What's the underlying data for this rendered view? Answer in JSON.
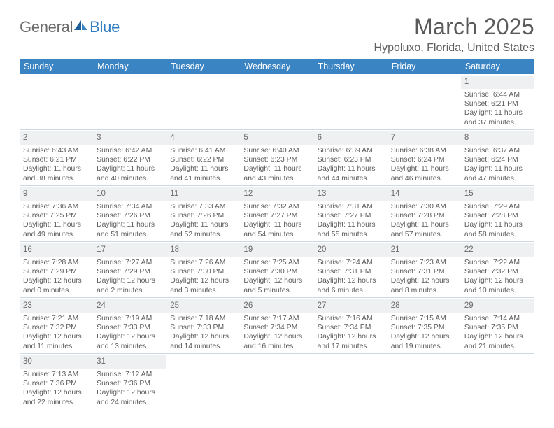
{
  "brand": {
    "word1": "General",
    "word2": "Blue"
  },
  "title": "March 2025",
  "location": "Hypoluxo, Florida, United States",
  "colors": {
    "header_bg": "#3b84c4",
    "header_fg": "#ffffff",
    "border": "#cdd8e2",
    "daybar_bg": "#eef0f2",
    "text": "#5a5a5a",
    "brand_blue": "#2e7cc2"
  },
  "weekdays": [
    "Sunday",
    "Monday",
    "Tuesday",
    "Wednesday",
    "Thursday",
    "Friday",
    "Saturday"
  ],
  "weeks": [
    [
      {
        "blank": true
      },
      {
        "blank": true
      },
      {
        "blank": true
      },
      {
        "blank": true
      },
      {
        "blank": true
      },
      {
        "blank": true
      },
      {
        "num": "1",
        "sunrise": "Sunrise: 6:44 AM",
        "sunset": "Sunset: 6:21 PM",
        "daylight": "Daylight: 11 hours and 37 minutes."
      }
    ],
    [
      {
        "num": "2",
        "sunrise": "Sunrise: 6:43 AM",
        "sunset": "Sunset: 6:21 PM",
        "daylight": "Daylight: 11 hours and 38 minutes."
      },
      {
        "num": "3",
        "sunrise": "Sunrise: 6:42 AM",
        "sunset": "Sunset: 6:22 PM",
        "daylight": "Daylight: 11 hours and 40 minutes."
      },
      {
        "num": "4",
        "sunrise": "Sunrise: 6:41 AM",
        "sunset": "Sunset: 6:22 PM",
        "daylight": "Daylight: 11 hours and 41 minutes."
      },
      {
        "num": "5",
        "sunrise": "Sunrise: 6:40 AM",
        "sunset": "Sunset: 6:23 PM",
        "daylight": "Daylight: 11 hours and 43 minutes."
      },
      {
        "num": "6",
        "sunrise": "Sunrise: 6:39 AM",
        "sunset": "Sunset: 6:23 PM",
        "daylight": "Daylight: 11 hours and 44 minutes."
      },
      {
        "num": "7",
        "sunrise": "Sunrise: 6:38 AM",
        "sunset": "Sunset: 6:24 PM",
        "daylight": "Daylight: 11 hours and 46 minutes."
      },
      {
        "num": "8",
        "sunrise": "Sunrise: 6:37 AM",
        "sunset": "Sunset: 6:24 PM",
        "daylight": "Daylight: 11 hours and 47 minutes."
      }
    ],
    [
      {
        "num": "9",
        "sunrise": "Sunrise: 7:36 AM",
        "sunset": "Sunset: 7:25 PM",
        "daylight": "Daylight: 11 hours and 49 minutes."
      },
      {
        "num": "10",
        "sunrise": "Sunrise: 7:34 AM",
        "sunset": "Sunset: 7:26 PM",
        "daylight": "Daylight: 11 hours and 51 minutes."
      },
      {
        "num": "11",
        "sunrise": "Sunrise: 7:33 AM",
        "sunset": "Sunset: 7:26 PM",
        "daylight": "Daylight: 11 hours and 52 minutes."
      },
      {
        "num": "12",
        "sunrise": "Sunrise: 7:32 AM",
        "sunset": "Sunset: 7:27 PM",
        "daylight": "Daylight: 11 hours and 54 minutes."
      },
      {
        "num": "13",
        "sunrise": "Sunrise: 7:31 AM",
        "sunset": "Sunset: 7:27 PM",
        "daylight": "Daylight: 11 hours and 55 minutes."
      },
      {
        "num": "14",
        "sunrise": "Sunrise: 7:30 AM",
        "sunset": "Sunset: 7:28 PM",
        "daylight": "Daylight: 11 hours and 57 minutes."
      },
      {
        "num": "15",
        "sunrise": "Sunrise: 7:29 AM",
        "sunset": "Sunset: 7:28 PM",
        "daylight": "Daylight: 11 hours and 58 minutes."
      }
    ],
    [
      {
        "num": "16",
        "sunrise": "Sunrise: 7:28 AM",
        "sunset": "Sunset: 7:29 PM",
        "daylight": "Daylight: 12 hours and 0 minutes."
      },
      {
        "num": "17",
        "sunrise": "Sunrise: 7:27 AM",
        "sunset": "Sunset: 7:29 PM",
        "daylight": "Daylight: 12 hours and 2 minutes."
      },
      {
        "num": "18",
        "sunrise": "Sunrise: 7:26 AM",
        "sunset": "Sunset: 7:30 PM",
        "daylight": "Daylight: 12 hours and 3 minutes."
      },
      {
        "num": "19",
        "sunrise": "Sunrise: 7:25 AM",
        "sunset": "Sunset: 7:30 PM",
        "daylight": "Daylight: 12 hours and 5 minutes."
      },
      {
        "num": "20",
        "sunrise": "Sunrise: 7:24 AM",
        "sunset": "Sunset: 7:31 PM",
        "daylight": "Daylight: 12 hours and 6 minutes."
      },
      {
        "num": "21",
        "sunrise": "Sunrise: 7:23 AM",
        "sunset": "Sunset: 7:31 PM",
        "daylight": "Daylight: 12 hours and 8 minutes."
      },
      {
        "num": "22",
        "sunrise": "Sunrise: 7:22 AM",
        "sunset": "Sunset: 7:32 PM",
        "daylight": "Daylight: 12 hours and 10 minutes."
      }
    ],
    [
      {
        "num": "23",
        "sunrise": "Sunrise: 7:21 AM",
        "sunset": "Sunset: 7:32 PM",
        "daylight": "Daylight: 12 hours and 11 minutes."
      },
      {
        "num": "24",
        "sunrise": "Sunrise: 7:19 AM",
        "sunset": "Sunset: 7:33 PM",
        "daylight": "Daylight: 12 hours and 13 minutes."
      },
      {
        "num": "25",
        "sunrise": "Sunrise: 7:18 AM",
        "sunset": "Sunset: 7:33 PM",
        "daylight": "Daylight: 12 hours and 14 minutes."
      },
      {
        "num": "26",
        "sunrise": "Sunrise: 7:17 AM",
        "sunset": "Sunset: 7:34 PM",
        "daylight": "Daylight: 12 hours and 16 minutes."
      },
      {
        "num": "27",
        "sunrise": "Sunrise: 7:16 AM",
        "sunset": "Sunset: 7:34 PM",
        "daylight": "Daylight: 12 hours and 17 minutes."
      },
      {
        "num": "28",
        "sunrise": "Sunrise: 7:15 AM",
        "sunset": "Sunset: 7:35 PM",
        "daylight": "Daylight: 12 hours and 19 minutes."
      },
      {
        "num": "29",
        "sunrise": "Sunrise: 7:14 AM",
        "sunset": "Sunset: 7:35 PM",
        "daylight": "Daylight: 12 hours and 21 minutes."
      }
    ],
    [
      {
        "num": "30",
        "sunrise": "Sunrise: 7:13 AM",
        "sunset": "Sunset: 7:36 PM",
        "daylight": "Daylight: 12 hours and 22 minutes."
      },
      {
        "num": "31",
        "sunrise": "Sunrise: 7:12 AM",
        "sunset": "Sunset: 7:36 PM",
        "daylight": "Daylight: 12 hours and 24 minutes."
      },
      {
        "blank": true
      },
      {
        "blank": true
      },
      {
        "blank": true
      },
      {
        "blank": true
      },
      {
        "blank": true
      }
    ]
  ]
}
